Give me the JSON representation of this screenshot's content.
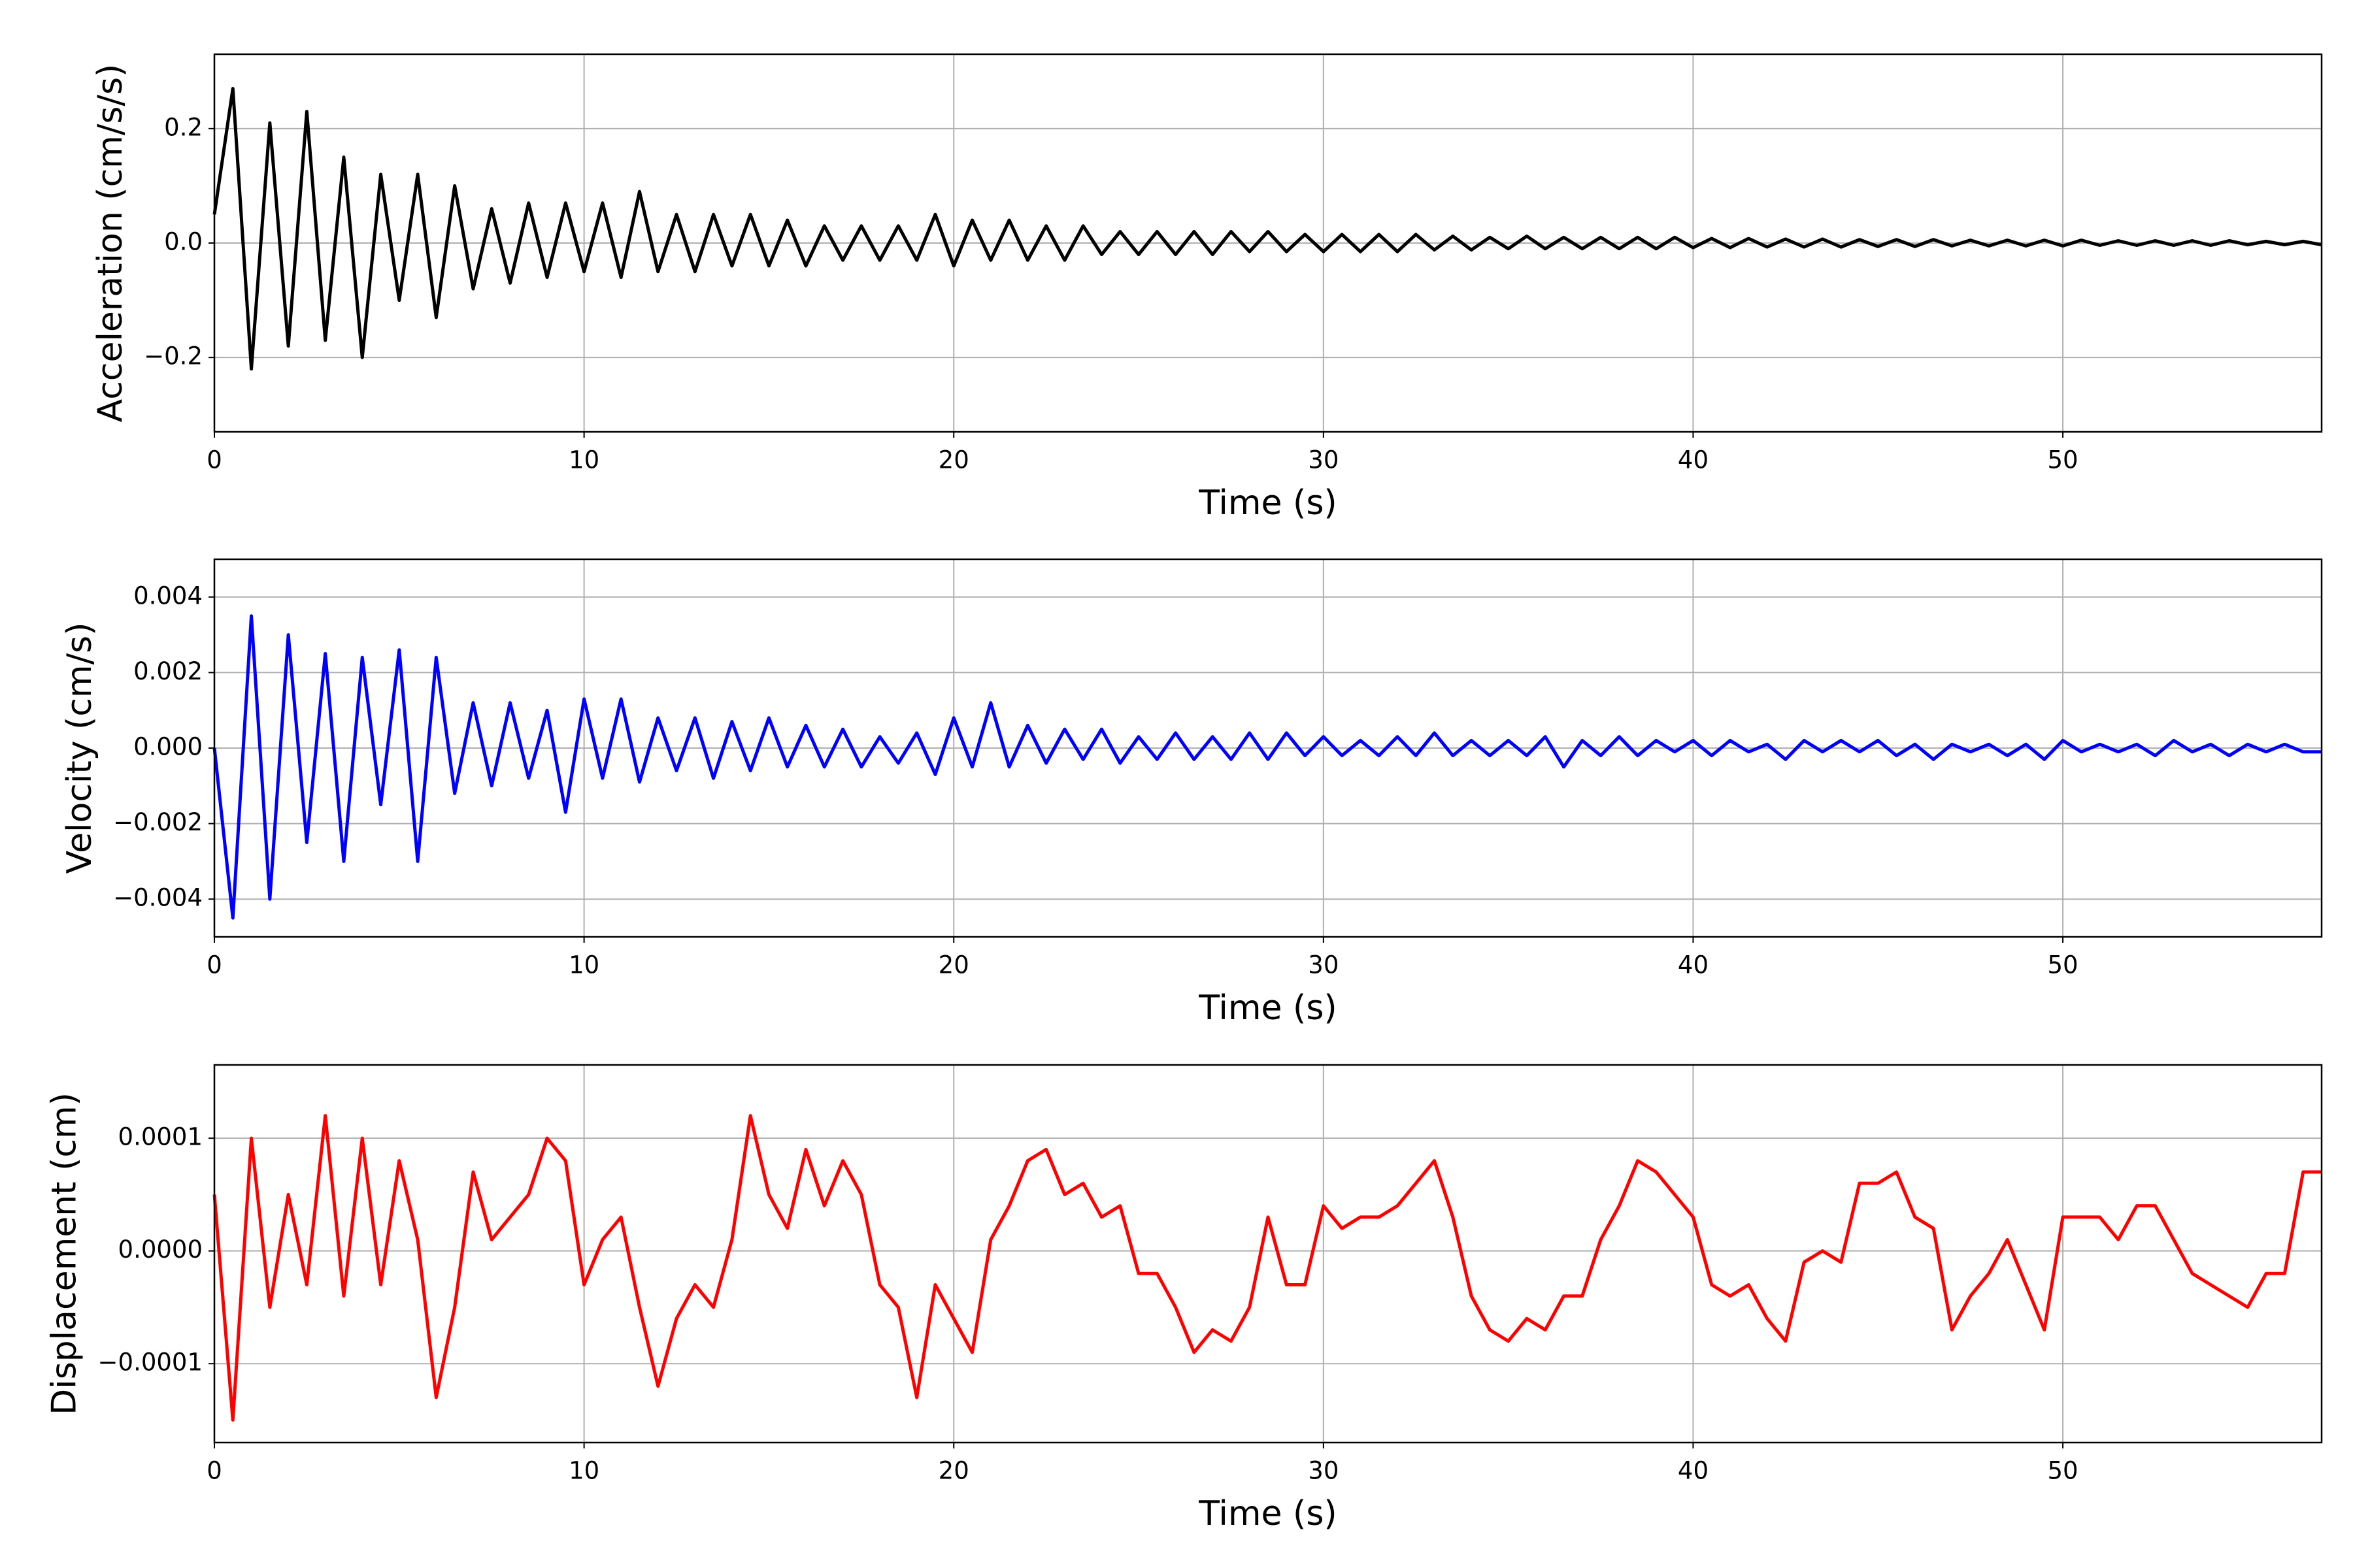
{
  "chart_data": [
    {
      "type": "line",
      "x_label": "Time (s)",
      "y_label": "Acceleration (cm/s/s)",
      "color": "#000000",
      "grid": true,
      "xlim": [
        0,
        57
      ],
      "xticks": [
        0,
        10,
        20,
        30,
        40,
        50
      ],
      "ylim": [
        -0.33,
        0.33
      ],
      "yticks": [
        {
          "value": -0.2,
          "label": "−0.2"
        },
        {
          "value": 0,
          "label": "0.0"
        },
        {
          "value": 0.2,
          "label": "0.2"
        }
      ],
      "x": [
        0,
        0.5,
        1,
        1.5,
        2,
        2.5,
        3,
        3.5,
        4,
        4.5,
        5,
        5.5,
        6,
        6.5,
        7,
        7.5,
        8,
        8.5,
        9,
        9.5,
        10,
        10.5,
        11,
        11.5,
        12,
        12.5,
        13,
        13.5,
        14,
        14.5,
        15,
        15.5,
        16,
        16.5,
        17,
        17.5,
        18,
        18.5,
        19,
        19.5,
        20,
        20.5,
        21,
        21.5,
        22,
        22.5,
        23,
        23.5,
        24,
        24.5,
        25,
        25.5,
        26,
        26.5,
        27,
        27.5,
        28,
        28.5,
        29,
        29.5,
        30,
        30.5,
        31,
        31.5,
        32,
        32.5,
        33,
        33.5,
        34,
        34.5,
        35,
        35.5,
        36,
        36.5,
        37,
        37.5,
        38,
        38.5,
        39,
        39.5,
        40,
        40.5,
        41,
        41.5,
        42,
        42.5,
        43,
        43.5,
        44,
        44.5,
        45,
        45.5,
        46,
        46.5,
        47,
        47.5,
        48,
        48.5,
        49,
        49.5,
        50,
        50.5,
        51,
        51.5,
        52,
        52.5,
        53,
        53.5,
        54,
        54.5,
        55,
        55.5,
        56,
        56.5,
        57
      ],
      "values": [
        0.05,
        0.27,
        -0.22,
        0.21,
        -0.18,
        0.23,
        -0.17,
        0.15,
        -0.2,
        0.12,
        -0.1,
        0.12,
        -0.13,
        0.1,
        -0.08,
        0.06,
        -0.07,
        0.07,
        -0.06,
        0.07,
        -0.05,
        0.07,
        -0.06,
        0.09,
        -0.05,
        0.05,
        -0.05,
        0.05,
        -0.04,
        0.05,
        -0.04,
        0.04,
        -0.04,
        0.03,
        -0.03,
        0.03,
        -0.03,
        0.03,
        -0.03,
        0.05,
        -0.04,
        0.04,
        -0.03,
        0.04,
        -0.03,
        0.03,
        -0.03,
        0.03,
        -0.02,
        0.02,
        -0.02,
        0.02,
        -0.02,
        0.02,
        -0.02,
        0.02,
        -0.015,
        0.02,
        -0.015,
        0.015,
        -0.015,
        0.015,
        -0.015,
        0.015,
        -0.015,
        0.015,
        -0.012,
        0.012,
        -0.012,
        0.01,
        -0.01,
        0.012,
        -0.01,
        0.01,
        -0.01,
        0.01,
        -0.01,
        0.01,
        -0.01,
        0.01,
        -0.008,
        0.008,
        -0.008,
        0.008,
        -0.007,
        0.007,
        -0.007,
        0.007,
        -0.007,
        0.006,
        -0.006,
        0.006,
        -0.006,
        0.006,
        -0.005,
        0.005,
        -0.005,
        0.005,
        -0.005,
        0.005,
        -0.005,
        0.005,
        -0.004,
        0.004,
        -0.004,
        0.004,
        -0.004,
        0.004,
        -0.004,
        0.004,
        -0.003,
        0.003,
        -0.003,
        0.003,
        -0.003
      ]
    },
    {
      "type": "line",
      "x_label": "Time (s)",
      "y_label": "Velocity (cm/s)",
      "color": "#0000ff",
      "grid": true,
      "xlim": [
        0,
        57
      ],
      "xticks": [
        0,
        10,
        20,
        30,
        40,
        50
      ],
      "ylim": [
        -0.005,
        0.005
      ],
      "yticks": [
        {
          "value": -0.004,
          "label": "−0.004"
        },
        {
          "value": -0.002,
          "label": "−0.002"
        },
        {
          "value": 0,
          "label": "0.000"
        },
        {
          "value": 0.002,
          "label": "0.002"
        },
        {
          "value": 0.004,
          "label": "0.004"
        }
      ],
      "x": [
        0,
        0.5,
        1,
        1.5,
        2,
        2.5,
        3,
        3.5,
        4,
        4.5,
        5,
        5.5,
        6,
        6.5,
        7,
        7.5,
        8,
        8.5,
        9,
        9.5,
        10,
        10.5,
        11,
        11.5,
        12,
        12.5,
        13,
        13.5,
        14,
        14.5,
        15,
        15.5,
        16,
        16.5,
        17,
        17.5,
        18,
        18.5,
        19,
        19.5,
        20,
        20.5,
        21,
        21.5,
        22,
        22.5,
        23,
        23.5,
        24,
        24.5,
        25,
        25.5,
        26,
        26.5,
        27,
        27.5,
        28,
        28.5,
        29,
        29.5,
        30,
        30.5,
        31,
        31.5,
        32,
        32.5,
        33,
        33.5,
        34,
        34.5,
        35,
        35.5,
        36,
        36.5,
        37,
        37.5,
        38,
        38.5,
        39,
        39.5,
        40,
        40.5,
        41,
        41.5,
        42,
        42.5,
        43,
        43.5,
        44,
        44.5,
        45,
        45.5,
        46,
        46.5,
        47,
        47.5,
        48,
        48.5,
        49,
        49.5,
        50,
        50.5,
        51,
        51.5,
        52,
        52.5,
        53,
        53.5,
        54,
        54.5,
        55,
        55.5,
        56,
        56.5,
        57
      ],
      "values": [
        0,
        -0.0045,
        0.0035,
        -0.004,
        0.003,
        -0.0025,
        0.0025,
        -0.003,
        0.0024,
        -0.0015,
        0.0026,
        -0.003,
        0.0024,
        -0.0012,
        0.0012,
        -0.001,
        0.0012,
        -0.0008,
        0.001,
        -0.0017,
        0.0013,
        -0.0008,
        0.0013,
        -0.0009,
        0.0008,
        -0.0006,
        0.0008,
        -0.0008,
        0.0007,
        -0.0006,
        0.0008,
        -0.0005,
        0.0006,
        -0.0005,
        0.0005,
        -0.0005,
        0.0003,
        -0.0004,
        0.0004,
        -0.0007,
        0.0008,
        -0.0005,
        0.0012,
        -0.0005,
        0.0006,
        -0.0004,
        0.0005,
        -0.0003,
        0.0005,
        -0.0004,
        0.0003,
        -0.0003,
        0.0004,
        -0.0003,
        0.0003,
        -0.0003,
        0.0004,
        -0.0003,
        0.0004,
        -0.0002,
        0.0003,
        -0.0002,
        0.0002,
        -0.0002,
        0.0003,
        -0.0002,
        0.0004,
        -0.0002,
        0.0002,
        -0.0002,
        0.0002,
        -0.0002,
        0.0003,
        -0.0005,
        0.0002,
        -0.0002,
        0.0003,
        -0.0002,
        0.0002,
        -0.0001,
        0.0002,
        -0.0002,
        0.0002,
        -0.0001,
        0.0001,
        -0.0003,
        0.0002,
        -0.0001,
        0.0002,
        -0.0001,
        0.0002,
        -0.0002,
        0.0001,
        -0.0003,
        0.0001,
        -0.0001,
        0.0001,
        -0.0002,
        0.0001,
        -0.0003,
        0.0002,
        -0.0001,
        0.0001,
        -0.0001,
        0.0001,
        -0.0002,
        0.0002,
        -0.0001,
        0.0001,
        -0.0002,
        0.0001,
        -0.0001,
        0.0001,
        -0.0001,
        -0.0001
      ]
    },
    {
      "type": "line",
      "x_label": "Time (s)",
      "y_label": "Displacement (cm)",
      "color": "#ff0000",
      "grid": true,
      "xlim": [
        0,
        57
      ],
      "xticks": [
        0,
        10,
        20,
        30,
        40,
        50
      ],
      "ylim": [
        -0.00017,
        0.000165
      ],
      "yticks": [
        {
          "value": -0.0001,
          "label": "−0.0001"
        },
        {
          "value": 0,
          "label": "0.0000"
        },
        {
          "value": 0.0001,
          "label": "0.0001"
        }
      ],
      "x": [
        0,
        0.5,
        1,
        1.5,
        2,
        2.5,
        3,
        3.5,
        4,
        4.5,
        5,
        5.5,
        6,
        6.5,
        7,
        7.5,
        8,
        8.5,
        9,
        9.5,
        10,
        10.5,
        11,
        11.5,
        12,
        12.5,
        13,
        13.5,
        14,
        14.5,
        15,
        15.5,
        16,
        16.5,
        17,
        17.5,
        18,
        18.5,
        19,
        19.5,
        20,
        20.5,
        21,
        21.5,
        22,
        22.5,
        23,
        23.5,
        24,
        24.5,
        25,
        25.5,
        26,
        26.5,
        27,
        27.5,
        28,
        28.5,
        29,
        29.5,
        30,
        30.5,
        31,
        31.5,
        32,
        32.5,
        33,
        33.5,
        34,
        34.5,
        35,
        35.5,
        36,
        36.5,
        37,
        37.5,
        38,
        38.5,
        39,
        39.5,
        40,
        40.5,
        41,
        41.5,
        42,
        42.5,
        43,
        43.5,
        44,
        44.5,
        45,
        45.5,
        46,
        46.5,
        47,
        47.5,
        48,
        48.5,
        49,
        49.5,
        50,
        50.5,
        51,
        51.5,
        52,
        52.5,
        53,
        53.5,
        54,
        54.5,
        55,
        55.5,
        56,
        56.5,
        57
      ],
      "values": [
        5e-05,
        -0.00015,
        0.0001,
        -5e-05,
        5e-05,
        -3e-05,
        0.00012,
        -4e-05,
        0.0001,
        -3e-05,
        8e-05,
        1e-05,
        -0.00013,
        -5e-05,
        7e-05,
        1e-05,
        3e-05,
        5e-05,
        0.0001,
        8e-05,
        -3e-05,
        1e-05,
        3e-05,
        -5e-05,
        -0.00012,
        -6e-05,
        -3e-05,
        -5e-05,
        1e-05,
        0.00012,
        5e-05,
        2e-05,
        9e-05,
        4e-05,
        8e-05,
        5e-05,
        -3e-05,
        -5e-05,
        -0.00013,
        -3e-05,
        -6e-05,
        -9e-05,
        1e-05,
        4e-05,
        8e-05,
        9e-05,
        5e-05,
        6e-05,
        3e-05,
        4e-05,
        -2e-05,
        -2e-05,
        -5e-05,
        -9e-05,
        -7e-05,
        -8e-05,
        -5e-05,
        3e-05,
        -3e-05,
        -3e-05,
        4e-05,
        2e-05,
        3e-05,
        3e-05,
        4e-05,
        6e-05,
        8e-05,
        3e-05,
        -4e-05,
        -7e-05,
        -8e-05,
        -6e-05,
        -7e-05,
        -4e-05,
        -4e-05,
        1e-05,
        4e-05,
        8e-05,
        7e-05,
        5e-05,
        3e-05,
        -3e-05,
        -4e-05,
        -3e-05,
        -6e-05,
        -8e-05,
        -1e-05,
        0,
        -1e-05,
        6e-05,
        6e-05,
        7e-05,
        3e-05,
        2e-05,
        -7e-05,
        -4e-05,
        -2e-05,
        1e-05,
        -3e-05,
        -7e-05,
        3e-05,
        3e-05,
        3e-05,
        1e-05,
        4e-05,
        4e-05,
        1e-05,
        -2e-05,
        -3e-05,
        -4e-05,
        -5e-05,
        -2e-05,
        -2e-05,
        7e-05,
        7e-05
      ]
    }
  ]
}
